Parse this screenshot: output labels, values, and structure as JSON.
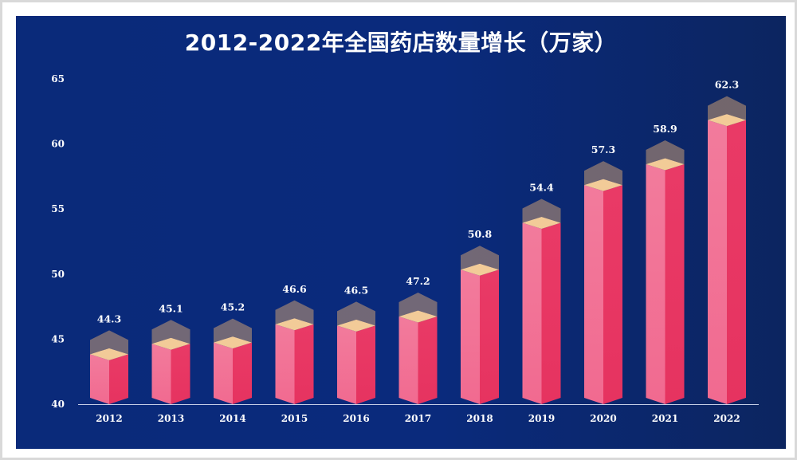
{
  "chart_data": {
    "type": "bar",
    "title": "2012-2022年全国药店数量增长（万家）",
    "categories": [
      "2012",
      "2013",
      "2014",
      "2015",
      "2016",
      "2017",
      "2018",
      "2019",
      "2020",
      "2021",
      "2022"
    ],
    "values": [
      44.3,
      45.1,
      45.2,
      46.6,
      46.5,
      47.2,
      50.8,
      54.4,
      57.3,
      58.9,
      62.3
    ],
    "ylim": [
      40,
      65
    ],
    "yticks": [
      40,
      45,
      50,
      55,
      60,
      65
    ],
    "xlabel": "",
    "ylabel": "",
    "grid": false,
    "colors": {
      "bar_left": "#f46f95",
      "bar_right": "#ea3f6a",
      "cap_light": "#ffcf8f",
      "cap_dark": "#b8876e",
      "panel_bg": "#0a2a7a",
      "text": "#ffffff"
    }
  }
}
